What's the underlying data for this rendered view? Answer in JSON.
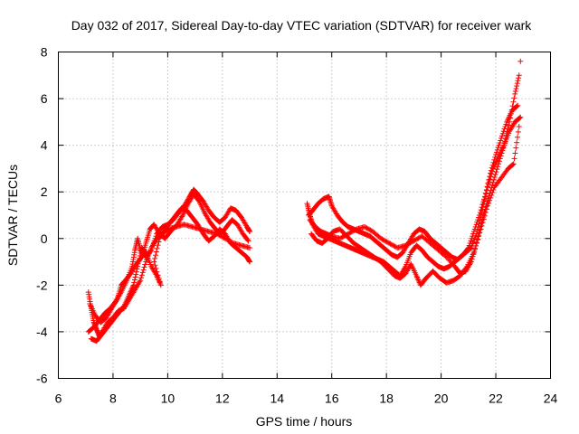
{
  "chart_data": {
    "type": "scatter",
    "title": "Day 032 of 2017, Sidereal Day-to-day VTEC variation (SDTVAR) for receiver wark",
    "xlabel": "GPS time / hours",
    "ylabel": "SDTVAR / TECUs",
    "xlim": [
      6,
      24
    ],
    "ylim": [
      -6,
      8
    ],
    "xticks": [
      "6",
      "8",
      "10",
      "12",
      "14",
      "16",
      "18",
      "20",
      "22",
      "24"
    ],
    "yticks": [
      "-6",
      "-4",
      "-2",
      "0",
      "2",
      "4",
      "6",
      "8"
    ],
    "grid": true,
    "marker": "+",
    "series": [
      {
        "name": "SDTVAR",
        "color": "#ff0000",
        "tracks": [
          [
            [
              7.1,
              -2.3
            ],
            [
              7.2,
              -3.0
            ],
            [
              7.3,
              -3.6
            ],
            [
              7.4,
              -3.9
            ],
            [
              7.5,
              -4.2
            ],
            [
              7.6,
              -4.0
            ],
            [
              7.8,
              -3.6
            ],
            [
              8.0,
              -3.4
            ],
            [
              8.2,
              -3.1
            ],
            [
              8.4,
              -3.0
            ],
            [
              8.6,
              -2.6
            ],
            [
              8.8,
              -2.2
            ],
            [
              9.0,
              -1.8
            ],
            [
              9.2,
              -1.0
            ],
            [
              9.4,
              -0.4
            ],
            [
              9.6,
              0.0
            ],
            [
              9.8,
              0.2
            ],
            [
              10.0,
              0.4
            ],
            [
              10.3,
              0.5
            ],
            [
              10.6,
              0.6
            ],
            [
              10.9,
              0.5
            ],
            [
              11.2,
              0.4
            ],
            [
              11.5,
              0.3
            ],
            [
              11.8,
              0.2
            ],
            [
              12.1,
              0.0
            ],
            [
              12.4,
              -0.2
            ],
            [
              12.7,
              -0.3
            ],
            [
              13.0,
              -0.4
            ]
          ],
          [
            [
              7.1,
              -4.0
            ],
            [
              7.3,
              -3.8
            ],
            [
              7.5,
              -3.5
            ],
            [
              7.7,
              -3.2
            ],
            [
              7.9,
              -3.0
            ],
            [
              8.1,
              -2.7
            ],
            [
              8.3,
              -2.3
            ],
            [
              8.5,
              -1.8
            ],
            [
              8.7,
              -1.2
            ],
            [
              8.8,
              -0.5
            ],
            [
              8.9,
              0.0
            ],
            [
              9.0,
              -0.5
            ],
            [
              9.2,
              -0.8
            ],
            [
              9.4,
              -0.5
            ],
            [
              9.6,
              0.2
            ],
            [
              9.8,
              0.5
            ],
            [
              10.0,
              0.6
            ],
            [
              10.2,
              0.8
            ],
            [
              10.4,
              1.1
            ],
            [
              10.6,
              1.4
            ],
            [
              10.8,
              1.8
            ],
            [
              10.95,
              2.1
            ],
            [
              11.1,
              1.9
            ],
            [
              11.3,
              1.6
            ],
            [
              11.5,
              1.2
            ],
            [
              11.7,
              0.9
            ],
            [
              11.9,
              0.7
            ],
            [
              12.1,
              0.9
            ],
            [
              12.3,
              1.3
            ],
            [
              12.5,
              1.2
            ],
            [
              12.7,
              0.9
            ],
            [
              12.9,
              0.5
            ],
            [
              13.0,
              0.3
            ]
          ],
          [
            [
              7.15,
              -2.8
            ],
            [
              7.35,
              -3.3
            ],
            [
              7.55,
              -3.6
            ],
            [
              7.75,
              -3.4
            ],
            [
              7.95,
              -3.0
            ],
            [
              8.15,
              -2.6
            ],
            [
              8.3,
              -2.0
            ],
            [
              8.45,
              -1.8
            ],
            [
              8.65,
              -1.5
            ],
            [
              8.85,
              -1.1
            ],
            [
              9.05,
              -0.8
            ],
            [
              9.2,
              -0.2
            ],
            [
              9.35,
              0.4
            ],
            [
              9.5,
              0.6
            ],
            [
              9.7,
              0.2
            ],
            [
              9.9,
              0.0
            ],
            [
              10.1,
              0.3
            ],
            [
              10.35,
              0.6
            ],
            [
              10.55,
              1.0
            ],
            [
              10.75,
              1.5
            ],
            [
              10.95,
              1.9
            ],
            [
              11.15,
              1.6
            ],
            [
              11.35,
              1.1
            ],
            [
              11.55,
              0.7
            ],
            [
              11.75,
              0.4
            ],
            [
              11.95,
              0.2
            ],
            [
              12.15,
              0.5
            ],
            [
              12.35,
              0.8
            ],
            [
              12.55,
              0.6
            ],
            [
              12.75,
              0.2
            ],
            [
              12.95,
              -0.1
            ]
          ],
          [
            [
              7.2,
              -4.3
            ],
            [
              7.4,
              -4.4
            ],
            [
              7.6,
              -4.1
            ],
            [
              7.8,
              -3.8
            ],
            [
              8.0,
              -3.5
            ],
            [
              8.2,
              -3.2
            ],
            [
              8.4,
              -2.9
            ],
            [
              8.6,
              -2.4
            ],
            [
              8.75,
              -2.0
            ],
            [
              8.9,
              -1.2
            ],
            [
              9.05,
              -0.4
            ],
            [
              9.2,
              -0.6
            ],
            [
              9.4,
              -1.2
            ],
            [
              9.6,
              -1.6
            ],
            [
              9.75,
              -2.0
            ],
            [
              9.5,
              -1.0
            ],
            [
              9.7,
              0.0
            ],
            [
              9.9,
              0.4
            ],
            [
              10.1,
              0.7
            ],
            [
              10.3,
              1.0
            ],
            [
              10.5,
              1.3
            ],
            [
              10.7,
              1.2
            ],
            [
              10.9,
              0.9
            ],
            [
              11.1,
              0.6
            ],
            [
              11.3,
              0.2
            ],
            [
              11.5,
              -0.1
            ],
            [
              11.7,
              0.1
            ],
            [
              11.9,
              0.4
            ],
            [
              12.1,
              0.2
            ],
            [
              12.3,
              -0.2
            ],
            [
              12.5,
              -0.4
            ],
            [
              12.7,
              -0.6
            ],
            [
              12.9,
              -0.8
            ],
            [
              13.0,
              -1.0
            ]
          ],
          [
            [
              15.1,
              1.5
            ],
            [
              15.2,
              1.0
            ],
            [
              15.3,
              0.6
            ],
            [
              15.5,
              0.2
            ],
            [
              15.7,
              0.1
            ],
            [
              15.9,
              0.0
            ],
            [
              16.1,
              -0.1
            ],
            [
              16.3,
              -0.2
            ],
            [
              16.5,
              -0.3
            ],
            [
              16.7,
              -0.4
            ],
            [
              16.9,
              -0.5
            ],
            [
              17.1,
              -0.6
            ],
            [
              17.3,
              -0.7
            ],
            [
              17.5,
              -0.8
            ],
            [
              17.7,
              -0.9
            ],
            [
              17.9,
              -1.0
            ],
            [
              18.1,
              -1.2
            ],
            [
              18.3,
              -1.4
            ],
            [
              18.5,
              -1.6
            ],
            [
              18.7,
              -1.2
            ],
            [
              18.9,
              -0.6
            ],
            [
              19.1,
              -0.3
            ],
            [
              19.3,
              -0.5
            ],
            [
              19.5,
              -0.8
            ],
            [
              19.7,
              -1.0
            ],
            [
              19.9,
              -1.2
            ],
            [
              20.1,
              -1.3
            ],
            [
              20.3,
              -1.2
            ],
            [
              20.5,
              -1.0
            ],
            [
              20.7,
              -0.8
            ],
            [
              20.9,
              -0.6
            ],
            [
              21.1,
              -0.4
            ],
            [
              21.3,
              0.2
            ],
            [
              21.5,
              1.2
            ],
            [
              21.7,
              2.2
            ],
            [
              21.9,
              3.0
            ],
            [
              22.1,
              3.5
            ],
            [
              22.3,
              4.0
            ],
            [
              22.5,
              4.6
            ],
            [
              22.7,
              5.0
            ],
            [
              22.9,
              5.2
            ]
          ],
          [
            [
              15.15,
              1.0
            ],
            [
              15.3,
              1.2
            ],
            [
              15.5,
              1.5
            ],
            [
              15.7,
              1.7
            ],
            [
              15.9,
              1.8
            ],
            [
              16.0,
              1.4
            ],
            [
              16.2,
              1.0
            ],
            [
              16.4,
              0.7
            ],
            [
              16.6,
              0.5
            ],
            [
              16.8,
              0.4
            ],
            [
              17.0,
              0.3
            ],
            [
              17.2,
              0.2
            ],
            [
              17.4,
              0.1
            ],
            [
              17.6,
              -0.1
            ],
            [
              17.8,
              -0.3
            ],
            [
              18.0,
              -0.5
            ],
            [
              18.2,
              -0.7
            ],
            [
              18.4,
              -0.8
            ],
            [
              18.6,
              -0.6
            ],
            [
              18.8,
              -0.2
            ],
            [
              19.0,
              0.2
            ],
            [
              19.2,
              0.4
            ],
            [
              19.4,
              0.3
            ],
            [
              19.6,
              0.0
            ],
            [
              19.8,
              -0.2
            ],
            [
              20.0,
              -0.4
            ],
            [
              20.2,
              -0.6
            ],
            [
              20.4,
              -0.8
            ],
            [
              20.6,
              -0.9
            ],
            [
              20.8,
              -0.7
            ],
            [
              21.0,
              -0.4
            ],
            [
              21.2,
              0.3
            ],
            [
              21.4,
              1.0
            ],
            [
              21.6,
              1.8
            ],
            [
              21.8,
              2.8
            ],
            [
              22.0,
              3.6
            ],
            [
              22.2,
              4.3
            ],
            [
              22.4,
              5.0
            ],
            [
              22.6,
              5.5
            ],
            [
              22.8,
              5.7
            ]
          ],
          [
            [
              15.2,
              0.8
            ],
            [
              15.4,
              0.5
            ],
            [
              15.6,
              0.3
            ],
            [
              15.8,
              0.2
            ],
            [
              16.0,
              0.1
            ],
            [
              16.3,
              0.0
            ],
            [
              16.6,
              0.2
            ],
            [
              16.9,
              0.4
            ],
            [
              17.2,
              0.5
            ],
            [
              17.5,
              0.3
            ],
            [
              17.8,
              0.0
            ],
            [
              18.1,
              -0.2
            ],
            [
              18.4,
              -0.4
            ],
            [
              18.7,
              -0.3
            ],
            [
              19.0,
              -0.1
            ],
            [
              19.3,
              0.1
            ],
            [
              19.6,
              -0.2
            ],
            [
              19.9,
              -0.5
            ],
            [
              20.2,
              -0.8
            ],
            [
              20.5,
              -1.2
            ],
            [
              20.7,
              -1.5
            ],
            [
              20.9,
              -1.4
            ],
            [
              21.1,
              -1.0
            ],
            [
              21.3,
              -0.2
            ],
            [
              21.5,
              0.8
            ],
            [
              21.7,
              1.6
            ],
            [
              21.9,
              2.4
            ],
            [
              22.1,
              3.2
            ],
            [
              22.3,
              4.0
            ],
            [
              22.5,
              5.0
            ],
            [
              22.7,
              6.2
            ],
            [
              22.85,
              7.0
            ]
          ],
          [
            [
              15.25,
              0.2
            ],
            [
              15.45,
              -0.1
            ],
            [
              15.65,
              -0.2
            ],
            [
              15.85,
              0.0
            ],
            [
              16.05,
              0.3
            ],
            [
              16.3,
              0.4
            ],
            [
              16.55,
              0.1
            ],
            [
              16.8,
              -0.2
            ],
            [
              17.05,
              -0.4
            ],
            [
              17.3,
              -0.6
            ],
            [
              17.55,
              -0.8
            ],
            [
              17.8,
              -1.0
            ],
            [
              18.05,
              -1.3
            ],
            [
              18.3,
              -1.6
            ],
            [
              18.5,
              -1.7
            ],
            [
              18.7,
              -1.5
            ],
            [
              18.9,
              -1.1
            ],
            [
              19.1,
              -1.6
            ],
            [
              19.25,
              -2.0
            ],
            [
              19.45,
              -1.7
            ],
            [
              19.7,
              -1.4
            ],
            [
              19.95,
              -1.7
            ],
            [
              20.2,
              -1.9
            ],
            [
              20.45,
              -1.8
            ],
            [
              20.7,
              -1.6
            ],
            [
              20.95,
              -1.2
            ],
            [
              21.2,
              -0.6
            ],
            [
              21.45,
              0.4
            ],
            [
              21.7,
              1.4
            ],
            [
              21.95,
              2.2
            ],
            [
              22.2,
              2.6
            ],
            [
              22.45,
              3.0
            ],
            [
              22.65,
              3.2
            ],
            [
              22.85,
              4.8
            ]
          ]
        ],
        "outliers": [
          [
            22.9,
            7.6
          ]
        ]
      }
    ]
  }
}
